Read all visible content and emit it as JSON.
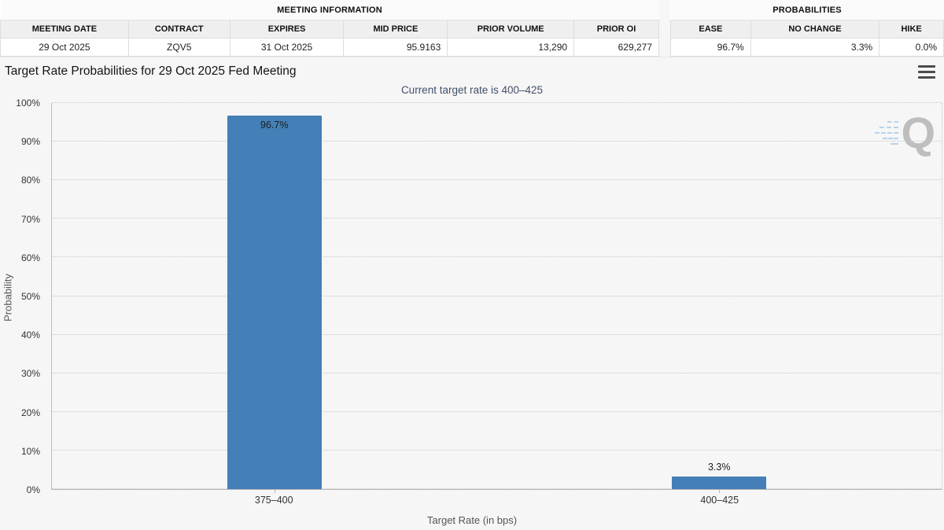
{
  "meeting_information": {
    "title": "MEETING INFORMATION",
    "columns": [
      "MEETING DATE",
      "CONTRACT",
      "EXPIRES",
      "MID PRICE",
      "PRIOR VOLUME",
      "PRIOR OI"
    ],
    "values": [
      "29 Oct 2025",
      "ZQV5",
      "31 Oct 2025",
      "95.9163",
      "13,290",
      "629,277"
    ]
  },
  "probabilities": {
    "title": "PROBABILITIES",
    "columns": [
      "EASE",
      "NO CHANGE",
      "HIKE"
    ],
    "values": [
      "96.7%",
      "3.3%",
      "0.0%"
    ]
  },
  "chart": {
    "watermark_letter": "Q"
  },
  "chart_data": {
    "type": "bar",
    "title": "Target Rate Probabilities for 29 Oct 2025 Fed Meeting",
    "subtitle": "Current target rate is 400–425",
    "categories": [
      "375–400",
      "400–425"
    ],
    "values": [
      96.7,
      3.3
    ],
    "bar_labels": [
      "96.7%",
      "3.3%"
    ],
    "xlabel": "Target Rate (in bps)",
    "ylabel": "Probability",
    "ylim": [
      0,
      100
    ],
    "yticks": [
      "0%",
      "10%",
      "20%",
      "30%",
      "40%",
      "50%",
      "60%",
      "70%",
      "80%",
      "90%",
      "100%"
    ],
    "grid": "horizontal-dotted",
    "legend": "none",
    "bar_color": "#4480b7"
  }
}
